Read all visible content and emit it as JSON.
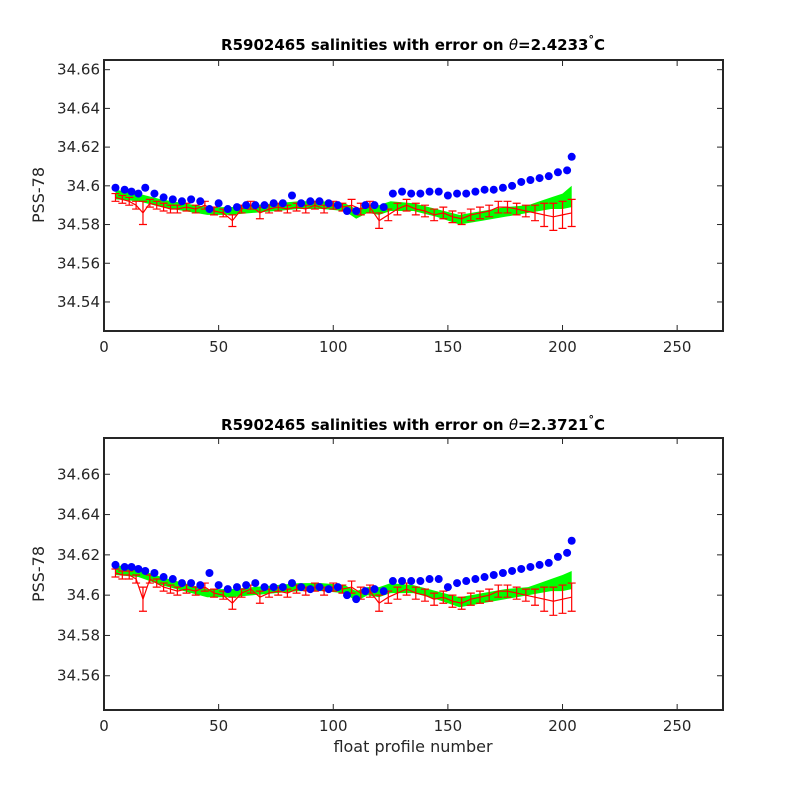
{
  "figure": {
    "xlabel": "float profile number",
    "colors": {
      "band": "#00ff00",
      "obs": "#0000ff",
      "err": "#ff0000",
      "axis": "#262626"
    }
  },
  "chart_data": [
    {
      "type": "scatter",
      "title_prefix": "R5902465 salinities with error on ",
      "title_symbol": "θ",
      "title_value": "=2.4233",
      "title_degree": "°",
      "title_unit": "C",
      "ylabel": "PSS-78",
      "xlabel": "",
      "xlim": [
        0,
        270
      ],
      "ylim": [
        34.525,
        34.665
      ],
      "xticks": [
        0,
        50,
        100,
        150,
        200,
        250
      ],
      "xtick_labels": [
        "0",
        "50",
        "100",
        "150",
        "200",
        "250"
      ],
      "yticks": [
        34.54,
        34.56,
        34.58,
        34.6,
        34.62,
        34.64,
        34.66
      ],
      "ytick_labels": [
        "34.54",
        "34.56",
        "34.58",
        "34.6",
        "34.62",
        "34.64",
        "34.66"
      ],
      "series": [
        {
          "kind": "band",
          "x": [
            5,
            15,
            25,
            35,
            45,
            55,
            65,
            75,
            85,
            95,
            105,
            110,
            115,
            120,
            125,
            135,
            145,
            155,
            165,
            175,
            185,
            190,
            195,
            200,
            204
          ],
          "low": [
            34.593,
            34.592,
            34.589,
            34.587,
            34.585,
            34.585,
            34.586,
            34.587,
            34.588,
            34.588,
            34.587,
            34.583,
            34.586,
            34.585,
            34.587,
            34.587,
            34.584,
            34.58,
            34.582,
            34.584,
            34.586,
            34.587,
            34.588,
            34.588,
            34.589
          ],
          "high": [
            34.598,
            34.596,
            34.593,
            34.591,
            34.589,
            34.589,
            34.59,
            34.591,
            34.592,
            34.592,
            34.591,
            34.588,
            34.59,
            34.59,
            34.592,
            34.591,
            34.588,
            34.585,
            34.587,
            34.589,
            34.59,
            34.592,
            34.594,
            34.596,
            34.6
          ]
        },
        {
          "kind": "errorbar",
          "x": [
            5,
            8,
            11,
            14,
            17,
            20,
            23,
            26,
            29,
            32,
            36,
            40,
            44,
            48,
            52,
            56,
            60,
            64,
            68,
            72,
            76,
            80,
            84,
            88,
            92,
            96,
            100,
            104,
            108,
            112,
            116,
            120,
            124,
            128,
            132,
            136,
            140,
            144,
            148,
            152,
            156,
            160,
            164,
            168,
            172,
            176,
            180,
            184,
            188,
            192,
            196,
            200,
            204
          ],
          "y": [
            34.594,
            34.593,
            34.592,
            34.59,
            34.586,
            34.591,
            34.59,
            34.589,
            34.588,
            34.588,
            34.589,
            34.588,
            34.59,
            34.587,
            34.586,
            34.582,
            34.588,
            34.59,
            34.586,
            34.588,
            34.589,
            34.588,
            34.589,
            34.588,
            34.59,
            34.588,
            34.59,
            34.589,
            34.59,
            34.588,
            34.589,
            34.582,
            34.585,
            34.588,
            34.59,
            34.588,
            34.587,
            34.585,
            34.586,
            34.584,
            34.583,
            34.585,
            34.586,
            34.587,
            34.589,
            34.589,
            34.588,
            34.587,
            34.586,
            34.585,
            34.584,
            34.585,
            34.586
          ],
          "err": [
            0.002,
            0.002,
            0.002,
            0.002,
            0.006,
            0.002,
            0.002,
            0.002,
            0.002,
            0.002,
            0.002,
            0.002,
            0.002,
            0.002,
            0.002,
            0.003,
            0.002,
            0.002,
            0.003,
            0.002,
            0.002,
            0.002,
            0.002,
            0.002,
            0.002,
            0.002,
            0.002,
            0.002,
            0.003,
            0.003,
            0.003,
            0.004,
            0.003,
            0.003,
            0.003,
            0.003,
            0.003,
            0.003,
            0.003,
            0.003,
            0.003,
            0.003,
            0.003,
            0.003,
            0.003,
            0.003,
            0.003,
            0.003,
            0.004,
            0.006,
            0.007,
            0.007,
            0.007
          ]
        },
        {
          "kind": "points",
          "x": [
            5,
            9,
            12,
            15,
            18,
            22,
            26,
            30,
            34,
            38,
            42,
            46,
            50,
            54,
            58,
            62,
            66,
            70,
            74,
            78,
            82,
            86,
            90,
            94,
            98,
            102,
            106,
            110,
            114,
            118,
            122,
            126,
            130,
            134,
            138,
            142,
            146,
            150,
            154,
            158,
            162,
            166,
            170,
            174,
            178,
            182,
            186,
            190,
            194,
            198,
            202,
            204
          ],
          "y": [
            34.599,
            34.598,
            34.597,
            34.596,
            34.599,
            34.596,
            34.594,
            34.593,
            34.592,
            34.593,
            34.592,
            34.588,
            34.591,
            34.588,
            34.589,
            34.59,
            34.59,
            34.59,
            34.591,
            34.591,
            34.595,
            34.591,
            34.592,
            34.592,
            34.591,
            34.59,
            34.587,
            34.587,
            34.59,
            34.59,
            34.589,
            34.596,
            34.597,
            34.596,
            34.596,
            34.597,
            34.597,
            34.595,
            34.596,
            34.596,
            34.597,
            34.598,
            34.598,
            34.599,
            34.6,
            34.602,
            34.603,
            34.604,
            34.605,
            34.607,
            34.608,
            34.615
          ]
        }
      ]
    },
    {
      "type": "scatter",
      "title_prefix": "R5902465 salinities with error on ",
      "title_symbol": "θ",
      "title_value": "=2.3721",
      "title_degree": "°",
      "title_unit": "C",
      "ylabel": "PSS-78",
      "xlabel": "float profile number",
      "xlim": [
        0,
        270
      ],
      "ylim": [
        34.543,
        34.678
      ],
      "xticks": [
        0,
        50,
        100,
        150,
        200,
        250
      ],
      "xtick_labels": [
        "0",
        "50",
        "100",
        "150",
        "200",
        "250"
      ],
      "yticks": [
        34.56,
        34.58,
        34.6,
        34.62,
        34.64,
        34.66
      ],
      "ytick_labels": [
        "34.56",
        "34.58",
        "34.6",
        "34.62",
        "34.64",
        "34.66"
      ],
      "series": [
        {
          "kind": "band",
          "x": [
            5,
            15,
            25,
            35,
            45,
            55,
            65,
            75,
            85,
            95,
            105,
            110,
            115,
            120,
            125,
            135,
            145,
            155,
            165,
            175,
            185,
            190,
            195,
            200,
            204
          ],
          "low": [
            34.61,
            34.609,
            34.605,
            34.602,
            34.599,
            34.599,
            34.6,
            34.601,
            34.602,
            34.602,
            34.601,
            34.597,
            34.6,
            34.599,
            34.601,
            34.601,
            34.598,
            34.594,
            34.596,
            34.598,
            34.6,
            34.601,
            34.602,
            34.602,
            34.603
          ],
          "high": [
            34.615,
            34.613,
            34.609,
            34.606,
            34.603,
            34.603,
            34.604,
            34.605,
            34.606,
            34.606,
            34.605,
            34.602,
            34.604,
            34.604,
            34.606,
            34.605,
            34.602,
            34.599,
            34.601,
            34.603,
            34.604,
            34.606,
            34.608,
            34.61,
            34.612
          ]
        },
        {
          "kind": "errorbar",
          "x": [
            5,
            8,
            11,
            14,
            17,
            20,
            23,
            26,
            29,
            32,
            36,
            40,
            44,
            48,
            52,
            56,
            60,
            64,
            68,
            72,
            76,
            80,
            84,
            88,
            92,
            96,
            100,
            104,
            108,
            112,
            116,
            120,
            124,
            128,
            132,
            136,
            140,
            144,
            148,
            152,
            156,
            160,
            164,
            168,
            172,
            176,
            180,
            184,
            188,
            192,
            196,
            200,
            204
          ],
          "y": [
            34.611,
            34.61,
            34.61,
            34.608,
            34.598,
            34.608,
            34.606,
            34.604,
            34.603,
            34.602,
            34.603,
            34.602,
            34.604,
            34.601,
            34.6,
            34.596,
            34.601,
            34.603,
            34.599,
            34.601,
            34.602,
            34.601,
            34.603,
            34.602,
            34.604,
            34.602,
            34.604,
            34.603,
            34.604,
            34.601,
            34.602,
            34.596,
            34.599,
            34.601,
            34.603,
            34.601,
            34.6,
            34.598,
            34.599,
            34.597,
            34.596,
            34.598,
            34.599,
            34.6,
            34.602,
            34.602,
            34.601,
            34.6,
            34.599,
            34.598,
            34.597,
            34.598,
            34.599
          ],
          "err": [
            0.002,
            0.002,
            0.002,
            0.002,
            0.006,
            0.002,
            0.002,
            0.002,
            0.002,
            0.002,
            0.002,
            0.002,
            0.002,
            0.002,
            0.002,
            0.003,
            0.002,
            0.002,
            0.003,
            0.002,
            0.002,
            0.002,
            0.002,
            0.002,
            0.002,
            0.002,
            0.002,
            0.002,
            0.003,
            0.003,
            0.003,
            0.004,
            0.003,
            0.003,
            0.003,
            0.003,
            0.003,
            0.003,
            0.003,
            0.003,
            0.003,
            0.003,
            0.003,
            0.003,
            0.003,
            0.003,
            0.003,
            0.003,
            0.004,
            0.006,
            0.007,
            0.007,
            0.007
          ]
        },
        {
          "kind": "points",
          "x": [
            5,
            9,
            12,
            15,
            18,
            22,
            26,
            30,
            34,
            38,
            42,
            46,
            50,
            54,
            58,
            62,
            66,
            70,
            74,
            78,
            82,
            86,
            90,
            94,
            98,
            102,
            106,
            110,
            114,
            118,
            122,
            126,
            130,
            134,
            138,
            142,
            146,
            150,
            154,
            158,
            162,
            166,
            170,
            174,
            178,
            182,
            186,
            190,
            194,
            198,
            202,
            204
          ],
          "y": [
            34.615,
            34.614,
            34.614,
            34.613,
            34.612,
            34.611,
            34.609,
            34.608,
            34.606,
            34.606,
            34.605,
            34.611,
            34.605,
            34.603,
            34.604,
            34.605,
            34.606,
            34.604,
            34.604,
            34.604,
            34.606,
            34.604,
            34.603,
            34.604,
            34.603,
            34.604,
            34.6,
            34.598,
            34.602,
            34.603,
            34.602,
            34.607,
            34.607,
            34.607,
            34.607,
            34.608,
            34.608,
            34.604,
            34.606,
            34.607,
            34.608,
            34.609,
            34.61,
            34.611,
            34.612,
            34.613,
            34.614,
            34.615,
            34.616,
            34.619,
            34.621,
            34.627
          ]
        }
      ]
    }
  ]
}
